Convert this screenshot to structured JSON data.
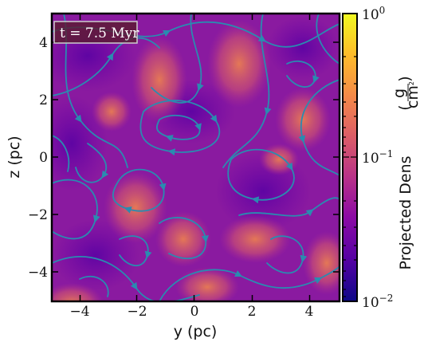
{
  "annotation": {
    "label": "t = 7.5 Myr"
  },
  "axes": {
    "x_label": "y  (pc)",
    "y_label": "z  (pc)",
    "x_ticks": [
      "−4",
      "−2",
      "0",
      "2",
      "4"
    ],
    "y_ticks": [
      "4",
      "2",
      "0",
      "−2",
      "−4"
    ]
  },
  "colorbar": {
    "label_main": "Projected Dens",
    "unit_num": "g",
    "unit_den": "cm",
    "unit_den_exp": "2",
    "ticks": {
      "top_base": "10",
      "top_exp": "0",
      "mid_base": "10",
      "mid_exp": "−1",
      "bot_base": "10",
      "bot_exp": "−2"
    },
    "colormap": [
      "#0d0887",
      "#5302a3",
      "#8b0aa5",
      "#b83289",
      "#db5c68",
      "#f48849",
      "#febd2a",
      "#f0f921"
    ]
  },
  "streamline_color": "#2a8bb0"
}
